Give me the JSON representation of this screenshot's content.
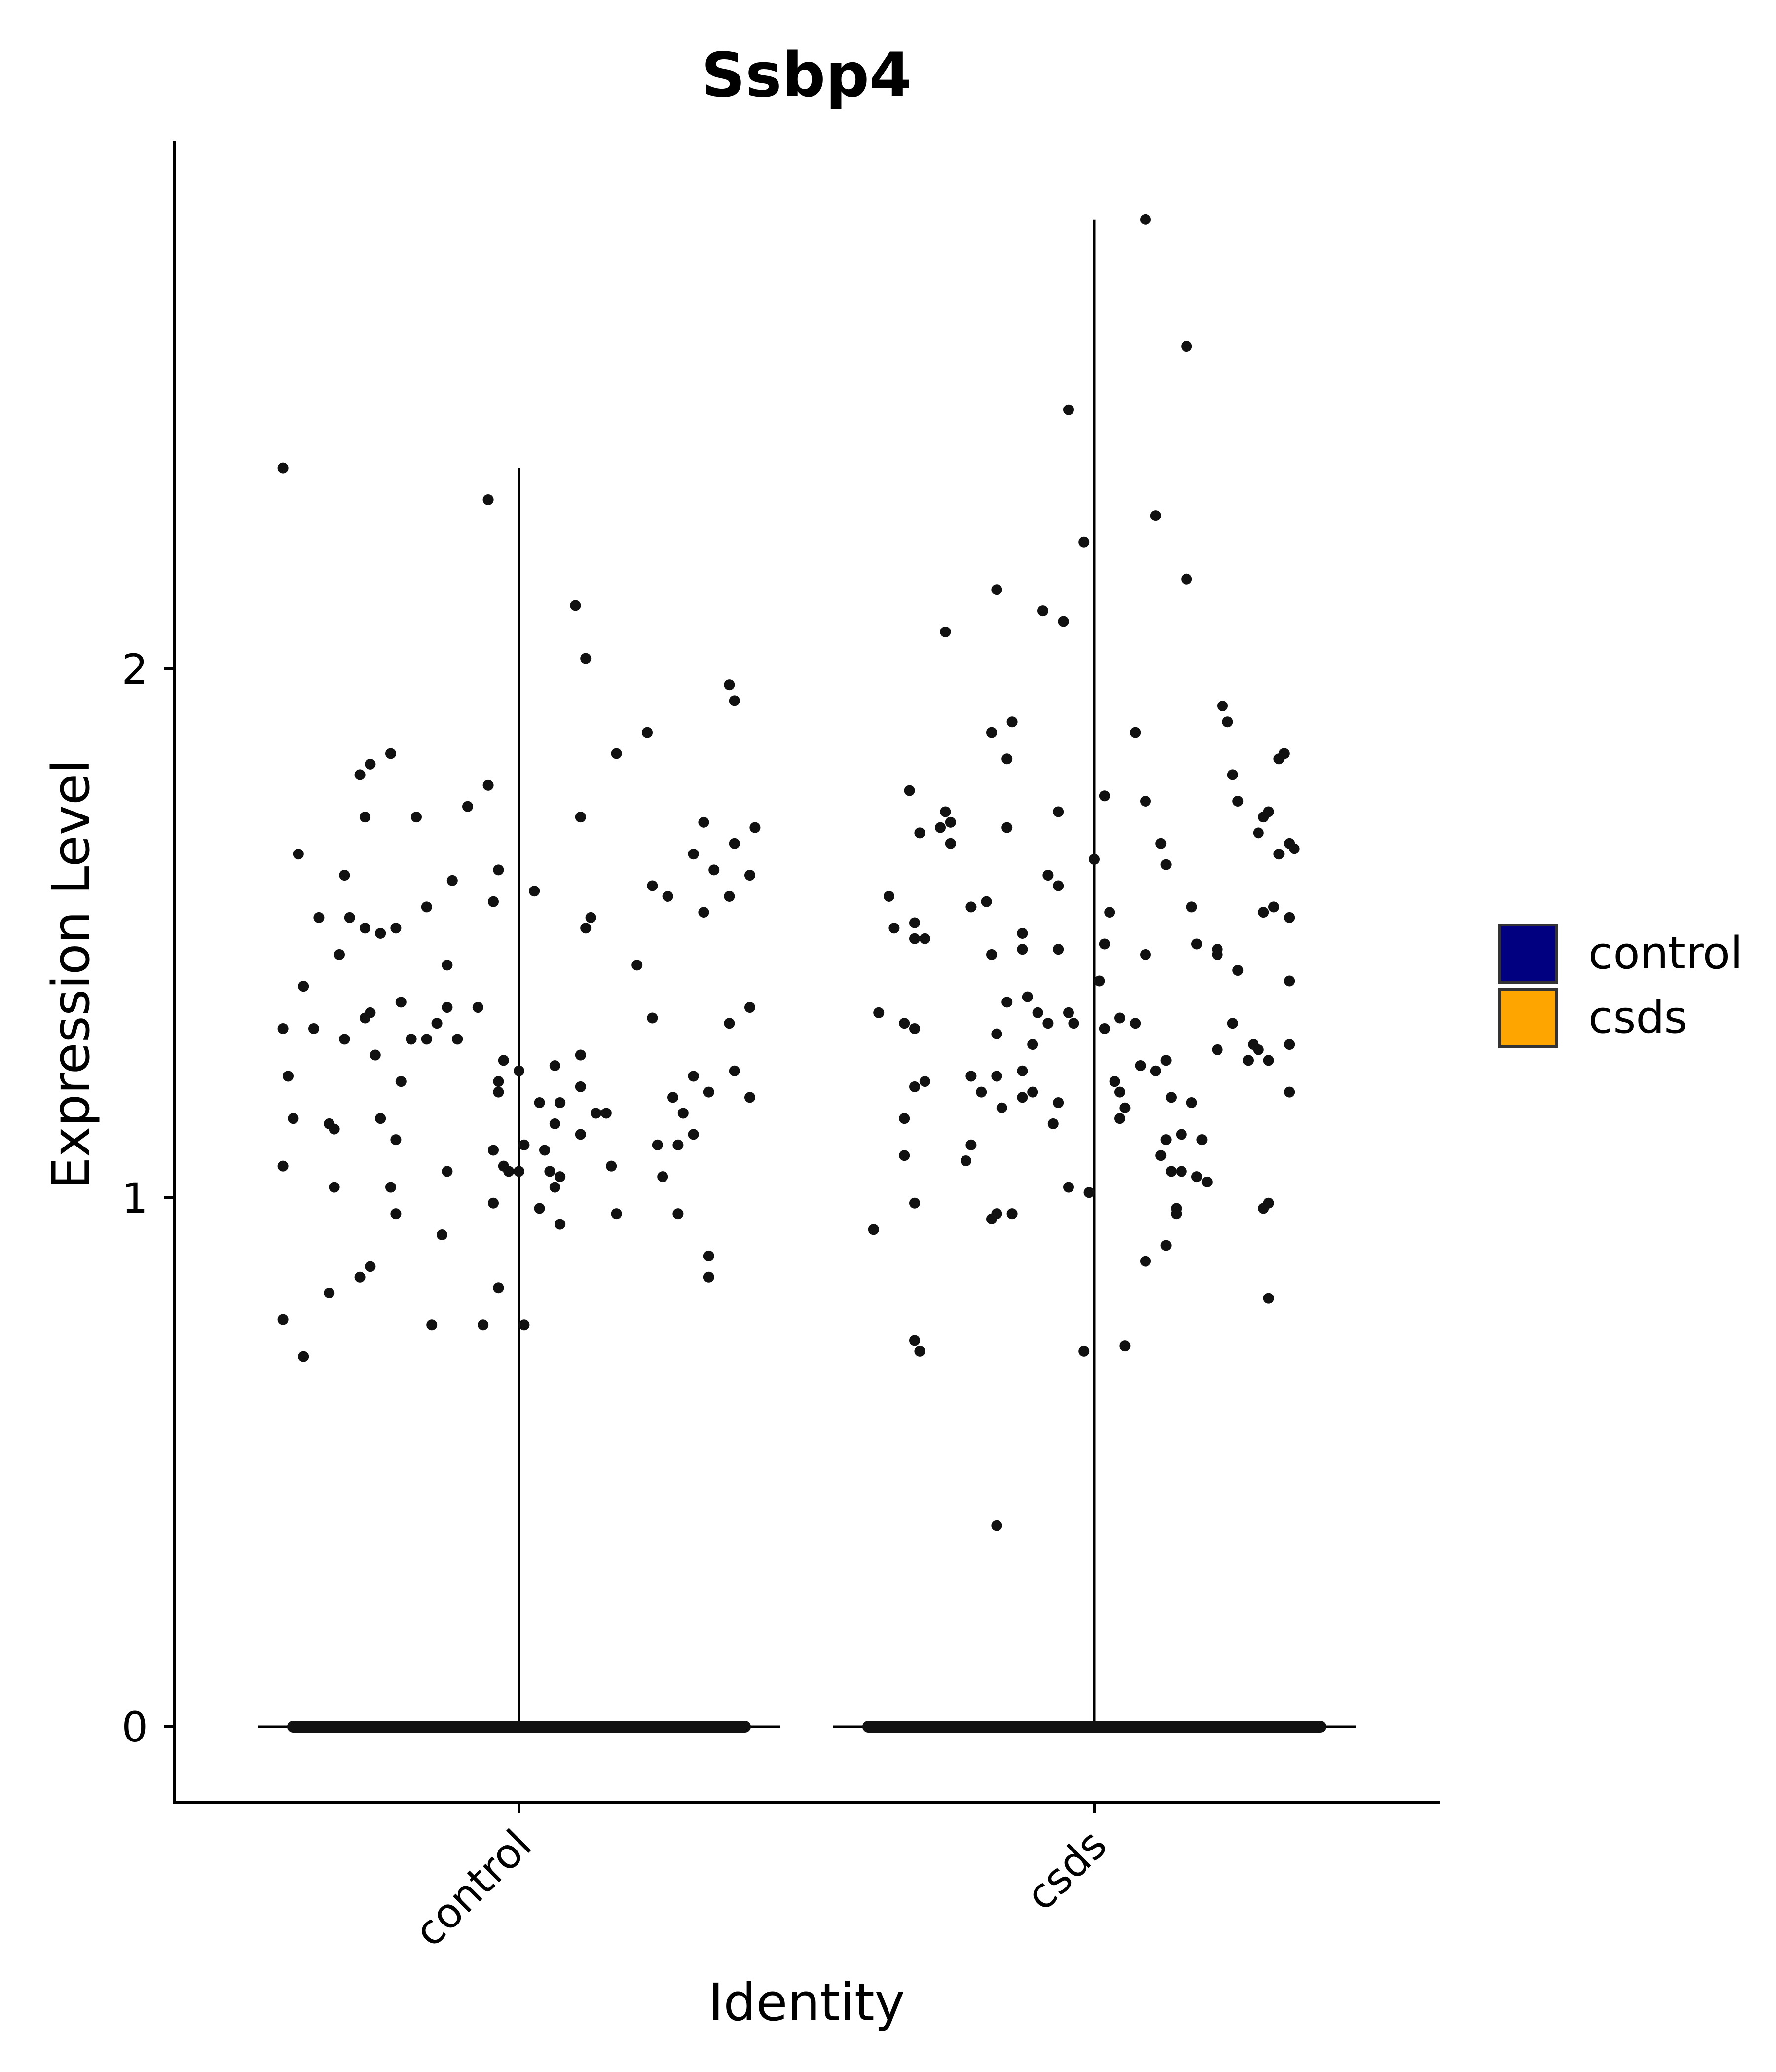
{
  "chart_data": {
    "type": "violin",
    "title": "Ssbp4",
    "xlabel": "Identity",
    "ylabel": "Expression Level",
    "categories": [
      "control",
      "csds"
    ],
    "ylim": [
      -0.14,
      3.0
    ],
    "yticks": [
      0,
      1,
      2
    ],
    "grid": false,
    "legend": {
      "position": "right",
      "entries": [
        {
          "label": "control",
          "color": "#000080"
        },
        {
          "label": "csds",
          "color": "#FFA500"
        }
      ]
    },
    "series": [
      {
        "name": "control",
        "max": 2.38,
        "zero_fraction_dominant": true,
        "points": [
          [
            -0.46,
            2.38
          ],
          [
            -0.06,
            2.32
          ],
          [
            0.11,
            2.12
          ],
          [
            0.13,
            2.02
          ],
          [
            0.41,
            1.97
          ],
          [
            0.42,
            1.94
          ],
          [
            0.25,
            1.88
          ],
          [
            -0.25,
            1.84
          ],
          [
            -0.29,
            1.82
          ],
          [
            -0.31,
            1.8
          ],
          [
            -0.06,
            1.78
          ],
          [
            0.19,
            1.84
          ],
          [
            -0.1,
            1.74
          ],
          [
            -0.3,
            1.72
          ],
          [
            -0.2,
            1.72
          ],
          [
            0.12,
            1.72
          ],
          [
            0.36,
            1.71
          ],
          [
            0.46,
            1.7
          ],
          [
            -0.04,
            1.62
          ],
          [
            -0.34,
            1.61
          ],
          [
            -0.13,
            1.6
          ],
          [
            0.03,
            1.58
          ],
          [
            0.34,
            1.65
          ],
          [
            0.42,
            1.67
          ],
          [
            0.38,
            1.62
          ],
          [
            0.45,
            1.61
          ],
          [
            0.26,
            1.59
          ],
          [
            0.29,
            1.57
          ],
          [
            0.41,
            1.57
          ],
          [
            -0.43,
            1.65
          ],
          [
            -0.39,
            1.53
          ],
          [
            -0.33,
            1.53
          ],
          [
            -0.24,
            1.51
          ],
          [
            -0.3,
            1.51
          ],
          [
            -0.27,
            1.5
          ],
          [
            -0.18,
            1.55
          ],
          [
            0.14,
            1.53
          ],
          [
            0.13,
            1.51
          ],
          [
            0.36,
            1.54
          ],
          [
            -0.05,
            1.56
          ],
          [
            -0.35,
            1.46
          ],
          [
            -0.14,
            1.44
          ],
          [
            0.23,
            1.44
          ],
          [
            -0.42,
            1.4
          ],
          [
            -0.23,
            1.37
          ],
          [
            -0.14,
            1.36
          ],
          [
            -0.08,
            1.36
          ],
          [
            -0.29,
            1.35
          ],
          [
            -0.3,
            1.34
          ],
          [
            -0.16,
            1.33
          ],
          [
            0.26,
            1.34
          ],
          [
            0.41,
            1.33
          ],
          [
            0.45,
            1.36
          ],
          [
            -0.46,
            1.32
          ],
          [
            -0.4,
            1.32
          ],
          [
            -0.34,
            1.3
          ],
          [
            -0.21,
            1.3
          ],
          [
            -0.18,
            1.3
          ],
          [
            -0.12,
            1.3
          ],
          [
            -0.28,
            1.27
          ],
          [
            0.12,
            1.27
          ],
          [
            -0.03,
            1.26
          ],
          [
            0.0,
            1.24
          ],
          [
            0.07,
            1.25
          ],
          [
            -0.04,
            1.22
          ],
          [
            -0.23,
            1.22
          ],
          [
            0.12,
            1.21
          ],
          [
            0.34,
            1.23
          ],
          [
            0.37,
            1.2
          ],
          [
            0.42,
            1.24
          ],
          [
            0.45,
            1.19
          ],
          [
            -0.45,
            1.23
          ],
          [
            -0.04,
            1.2
          ],
          [
            0.04,
            1.18
          ],
          [
            0.08,
            1.18
          ],
          [
            0.15,
            1.16
          ],
          [
            0.17,
            1.16
          ],
          [
            0.3,
            1.19
          ],
          [
            0.32,
            1.16
          ],
          [
            -0.44,
            1.15
          ],
          [
            -0.27,
            1.15
          ],
          [
            -0.37,
            1.14
          ],
          [
            -0.36,
            1.13
          ],
          [
            0.07,
            1.14
          ],
          [
            0.34,
            1.12
          ],
          [
            0.01,
            1.1
          ],
          [
            0.05,
            1.09
          ],
          [
            0.12,
            1.12
          ],
          [
            -0.05,
            1.09
          ],
          [
            0.27,
            1.1
          ],
          [
            -0.24,
            1.11
          ],
          [
            0.31,
            1.1
          ],
          [
            -0.46,
            1.06
          ],
          [
            -0.03,
            1.06
          ],
          [
            -0.02,
            1.05
          ],
          [
            0.0,
            1.05
          ],
          [
            -0.14,
            1.05
          ],
          [
            0.06,
            1.05
          ],
          [
            0.08,
            1.04
          ],
          [
            0.18,
            1.06
          ],
          [
            0.28,
            1.04
          ],
          [
            -0.36,
            1.02
          ],
          [
            -0.25,
            1.02
          ],
          [
            0.07,
            1.02
          ],
          [
            0.04,
            0.98
          ],
          [
            0.08,
            0.95
          ],
          [
            0.19,
            0.97
          ],
          [
            0.31,
            0.97
          ],
          [
            -0.24,
            0.97
          ],
          [
            -0.05,
            0.99
          ],
          [
            -0.15,
            0.93
          ],
          [
            0.37,
            0.89
          ],
          [
            0.37,
            0.85
          ],
          [
            -0.29,
            0.87
          ],
          [
            -0.31,
            0.85
          ],
          [
            -0.37,
            0.82
          ],
          [
            -0.04,
            0.83
          ],
          [
            -0.46,
            0.77
          ],
          [
            -0.17,
            0.76
          ],
          [
            -0.07,
            0.76
          ],
          [
            0.01,
            0.76
          ],
          [
            -0.42,
            0.7
          ]
        ]
      },
      {
        "name": "csds",
        "max": 2.85,
        "zero_fraction_dominant": true,
        "points": [
          [
            0.1,
            2.85
          ],
          [
            0.18,
            2.61
          ],
          [
            -0.05,
            2.49
          ],
          [
            -0.02,
            2.24
          ],
          [
            0.12,
            2.29
          ],
          [
            0.18,
            2.17
          ],
          [
            -0.19,
            2.15
          ],
          [
            -0.1,
            2.11
          ],
          [
            -0.06,
            2.09
          ],
          [
            -0.29,
            2.07
          ],
          [
            0.25,
            1.93
          ],
          [
            0.26,
            1.9
          ],
          [
            -0.16,
            1.9
          ],
          [
            -0.2,
            1.88
          ],
          [
            0.08,
            1.88
          ],
          [
            -0.17,
            1.83
          ],
          [
            0.36,
            1.83
          ],
          [
            0.37,
            1.84
          ],
          [
            0.27,
            1.8
          ],
          [
            -0.36,
            1.77
          ],
          [
            0.02,
            1.76
          ],
          [
            0.1,
            1.75
          ],
          [
            0.28,
            1.75
          ],
          [
            0.34,
            1.73
          ],
          [
            0.33,
            1.72
          ],
          [
            -0.29,
            1.73
          ],
          [
            -0.28,
            1.71
          ],
          [
            -0.3,
            1.7
          ],
          [
            -0.07,
            1.73
          ],
          [
            -0.17,
            1.7
          ],
          [
            -0.34,
            1.69
          ],
          [
            -0.28,
            1.67
          ],
          [
            0.32,
            1.69
          ],
          [
            0.13,
            1.67
          ],
          [
            0.14,
            1.63
          ],
          [
            0.38,
            1.67
          ],
          [
            0.39,
            1.66
          ],
          [
            -0.0,
            1.64
          ],
          [
            0.36,
            1.65
          ],
          [
            -0.09,
            1.61
          ],
          [
            -0.07,
            1.59
          ],
          [
            -0.4,
            1.57
          ],
          [
            -0.21,
            1.56
          ],
          [
            -0.24,
            1.55
          ],
          [
            0.03,
            1.54
          ],
          [
            0.19,
            1.55
          ],
          [
            0.35,
            1.55
          ],
          [
            0.33,
            1.54
          ],
          [
            0.38,
            1.53
          ],
          [
            -0.35,
            1.52
          ],
          [
            -0.35,
            1.49
          ],
          [
            -0.33,
            1.49
          ],
          [
            -0.39,
            1.51
          ],
          [
            -0.14,
            1.5
          ],
          [
            -0.14,
            1.47
          ],
          [
            -0.07,
            1.47
          ],
          [
            -0.2,
            1.46
          ],
          [
            0.02,
            1.48
          ],
          [
            0.1,
            1.46
          ],
          [
            0.2,
            1.48
          ],
          [
            0.24,
            1.47
          ],
          [
            0.24,
            1.46
          ],
          [
            0.28,
            1.43
          ],
          [
            0.38,
            1.41
          ],
          [
            -0.42,
            1.35
          ],
          [
            -0.37,
            1.33
          ],
          [
            -0.35,
            1.32
          ],
          [
            -0.13,
            1.38
          ],
          [
            -0.17,
            1.37
          ],
          [
            -0.11,
            1.35
          ],
          [
            -0.09,
            1.33
          ],
          [
            -0.05,
            1.35
          ],
          [
            -0.04,
            1.33
          ],
          [
            0.01,
            1.41
          ],
          [
            0.02,
            1.32
          ],
          [
            0.05,
            1.34
          ],
          [
            0.08,
            1.33
          ],
          [
            0.24,
            1.28
          ],
          [
            0.27,
            1.33
          ],
          [
            0.3,
            1.26
          ],
          [
            0.32,
            1.28
          ],
          [
            0.31,
            1.29
          ],
          [
            0.34,
            1.26
          ],
          [
            0.38,
            1.29
          ],
          [
            -0.19,
            1.31
          ],
          [
            -0.12,
            1.29
          ],
          [
            -0.14,
            1.24
          ],
          [
            -0.19,
            1.23
          ],
          [
            -0.24,
            1.23
          ],
          [
            -0.33,
            1.22
          ],
          [
            -0.35,
            1.21
          ],
          [
            0.04,
            1.22
          ],
          [
            0.05,
            1.2
          ],
          [
            0.09,
            1.25
          ],
          [
            0.14,
            1.26
          ],
          [
            0.12,
            1.24
          ],
          [
            0.15,
            1.19
          ],
          [
            0.19,
            1.18
          ],
          [
            0.06,
            1.17
          ],
          [
            -0.07,
            1.18
          ],
          [
            -0.12,
            1.2
          ],
          [
            -0.14,
            1.19
          ],
          [
            -0.22,
            1.2
          ],
          [
            -0.18,
            1.17
          ],
          [
            0.38,
            1.2
          ],
          [
            -0.37,
            1.15
          ],
          [
            -0.08,
            1.14
          ],
          [
            0.05,
            1.15
          ],
          [
            0.14,
            1.11
          ],
          [
            0.17,
            1.12
          ],
          [
            0.21,
            1.11
          ],
          [
            -0.24,
            1.1
          ],
          [
            -0.25,
            1.07
          ],
          [
            -0.37,
            1.08
          ],
          [
            0.13,
            1.08
          ],
          [
            0.15,
            1.05
          ],
          [
            0.17,
            1.05
          ],
          [
            0.2,
            1.04
          ],
          [
            -0.05,
            1.02
          ],
          [
            -0.01,
            1.01
          ],
          [
            0.22,
            1.03
          ],
          [
            -0.35,
            0.99
          ],
          [
            0.16,
            0.98
          ],
          [
            0.16,
            0.97
          ],
          [
            0.33,
            0.98
          ],
          [
            0.34,
            0.99
          ],
          [
            -0.19,
            0.97
          ],
          [
            -0.16,
            0.97
          ],
          [
            -0.2,
            0.96
          ],
          [
            -0.43,
            0.94
          ],
          [
            0.1,
            0.88
          ],
          [
            0.14,
            0.91
          ],
          [
            0.34,
            0.81
          ],
          [
            -0.35,
            0.73
          ],
          [
            -0.34,
            0.71
          ],
          [
            -0.02,
            0.71
          ],
          [
            0.06,
            0.72
          ],
          [
            -0.19,
            0.38
          ]
        ]
      }
    ]
  }
}
